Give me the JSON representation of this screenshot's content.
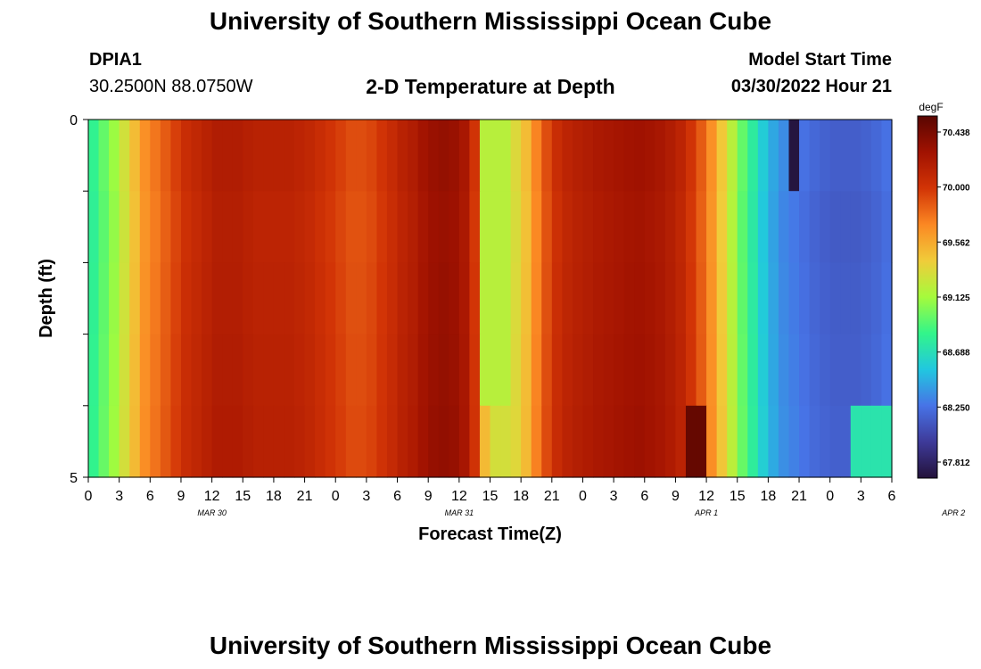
{
  "header": {
    "title": "University of Southern Mississippi Ocean Cube",
    "station_id": "DPIA1",
    "coords": "30.2500N  88.0750W",
    "plot_title": "2-D Temperature at Depth",
    "model_start_label": "Model Start Time",
    "model_start_value": "03/30/2022 Hour 21"
  },
  "footer": {
    "title": "University of Southern Mississippi Ocean Cube"
  },
  "colors": {
    "scale": [
      "#23123a",
      "#3e3a99",
      "#4773e6",
      "#21c7e0",
      "#32f58a",
      "#a5fb3c",
      "#f0cc3a",
      "#fb8823",
      "#d23406",
      "#a11201",
      "#590601"
    ]
  },
  "chart_data": {
    "type": "heatmap",
    "title": "2-D Temperature at Depth",
    "xlabel": "Forecast Time(Z)",
    "ylabel": "Depth (ft)",
    "x_start": "03/30/2022 00Z",
    "x_range_hours": [
      0,
      78
    ],
    "ylim": [
      0,
      5
    ],
    "y_ticks": [
      "0",
      "5"
    ],
    "x_ticks": [
      "0",
      "3",
      "6",
      "9",
      "12",
      "15",
      "18",
      "21",
      "0",
      "3",
      "6",
      "9",
      "12",
      "15",
      "18",
      "21",
      "0",
      "3",
      "6",
      "9",
      "12",
      "15",
      "18",
      "21",
      "0",
      "3",
      "6"
    ],
    "month_labels": [
      "MAR 30",
      "MAR 31",
      "APR 1",
      "APR 2"
    ],
    "colorbar": {
      "label": "degF",
      "ticks": [
        "70.438",
        "70.000",
        "69.562",
        "69.125",
        "68.688",
        "68.250",
        "67.812"
      ],
      "min": 67.6,
      "max": 70.65
    },
    "layers": 5,
    "profile_hours": [
      0,
      1,
      2,
      3,
      4,
      5,
      6,
      7,
      8,
      9,
      10,
      11,
      12,
      13,
      14,
      15,
      16,
      17,
      18,
      19,
      20,
      21,
      22,
      23,
      24,
      25,
      26,
      27,
      28,
      29,
      30,
      31,
      32,
      33,
      34,
      35,
      36,
      37,
      38,
      39,
      40,
      41,
      42,
      43,
      44,
      45,
      46,
      47,
      48,
      49,
      50,
      51,
      52,
      53,
      54,
      55,
      56,
      57,
      58,
      59,
      60,
      61,
      62,
      63,
      64,
      65,
      66,
      67,
      68,
      69,
      70,
      71,
      72,
      73,
      74,
      75,
      76,
      77,
      78
    ],
    "profile_degF": [
      68.8,
      68.95,
      69.1,
      69.3,
      69.5,
      69.7,
      69.8,
      69.9,
      70.0,
      70.1,
      70.15,
      70.2,
      70.25,
      70.25,
      70.25,
      70.22,
      70.2,
      70.2,
      70.2,
      70.2,
      70.18,
      70.15,
      70.1,
      70.05,
      70.0,
      69.95,
      69.95,
      69.98,
      70.05,
      70.12,
      70.2,
      70.25,
      70.33,
      70.38,
      70.4,
      70.38,
      70.3,
      70.05,
      69.5,
      69.3,
      69.3,
      69.35,
      69.5,
      69.75,
      69.95,
      70.1,
      70.18,
      70.22,
      70.25,
      70.28,
      70.3,
      70.32,
      70.34,
      70.35,
      70.33,
      70.3,
      70.25,
      70.18,
      70.05,
      69.9,
      69.7,
      69.45,
      69.2,
      68.95,
      68.75,
      68.55,
      68.4,
      68.3,
      68.25,
      68.2,
      68.15,
      68.12,
      68.1,
      68.1,
      68.1,
      68.12,
      68.15,
      68.2,
      68.25
    ],
    "layer_offsets_degF": [
      0.0,
      -0.02,
      -0.01,
      0.0,
      0.01
    ],
    "events": [
      {
        "hours": [
          68,
          69
        ],
        "layers": [
          0,
          0
        ],
        "degF": 67.62
      },
      {
        "hours": [
          58,
          60
        ],
        "layers": [
          4,
          4
        ],
        "degF": 70.6
      },
      {
        "hours": [
          74,
          78
        ],
        "layers": [
          4,
          4
        ],
        "degF": 68.7
      },
      {
        "hours": [
          38,
          41
        ],
        "layers": [
          0,
          3
        ],
        "degF": 69.2
      }
    ]
  }
}
